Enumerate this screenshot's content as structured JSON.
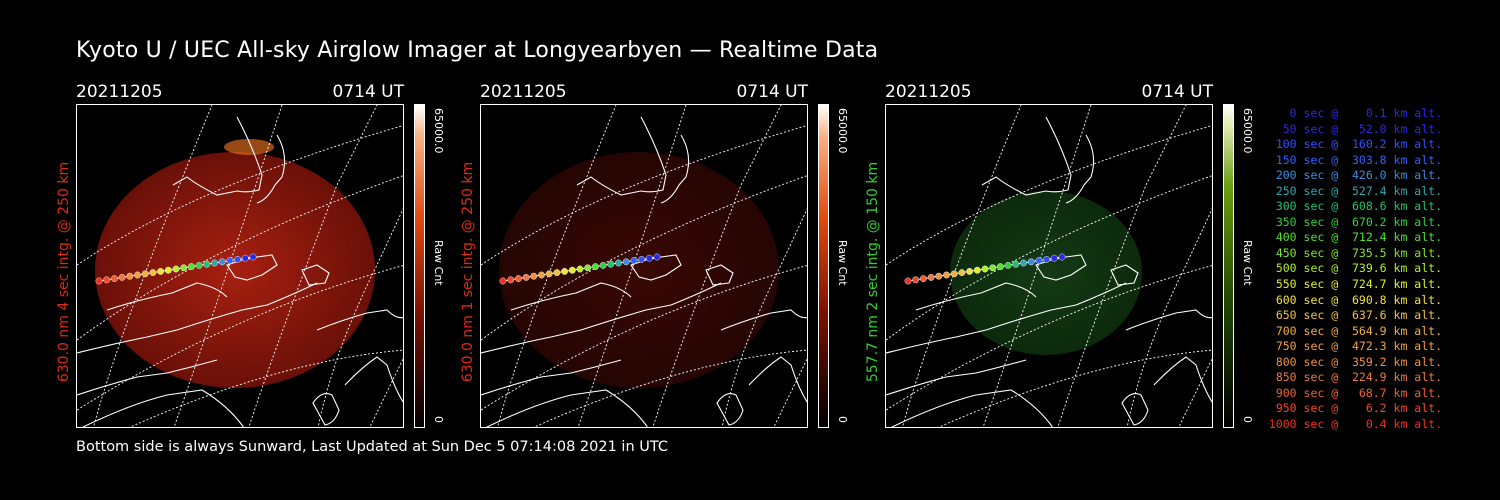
{
  "title": "Kyoto U / UEC All-sky Airglow Imager at Longyearbyen — Realtime Data",
  "footer": "Bottom side is always Sunward, Last Updated at Sun Dec  5 07:14:08 2021 in UTC",
  "colors": {
    "red_label": "#e02a10",
    "green_label": "#2fd02f"
  },
  "panels": [
    {
      "date": "20211205",
      "time": "0714 UT",
      "ylabel": "630.0 nm 4 sec intg. @ 250 km",
      "label_color": "#e02a10",
      "cbar_max": "65000.0",
      "cbar_unit": "Raw Cnt",
      "cbar_min": "0",
      "glow": "bright-red",
      "cbar_color": "red"
    },
    {
      "date": "20211205",
      "time": "0714 UT",
      "ylabel": "630.0 nm 1 sec intg. @ 250 km",
      "label_color": "#e02a10",
      "cbar_max": "65000.0",
      "cbar_unit": "Raw Cnt",
      "cbar_min": "0",
      "glow": "dim-red",
      "cbar_color": "red"
    },
    {
      "date": "20211205",
      "time": "0714 UT",
      "ylabel": "557.7 nm 2 sec intg. @ 150 km",
      "label_color": "#2fd02f",
      "cbar_max": "65000.0",
      "cbar_unit": "Raw Cnt",
      "cbar_min": "0",
      "glow": "dim-green",
      "cbar_color": "green"
    }
  ],
  "trajectory_legend": [
    {
      "text": "   0 sec @    0.1 km alt.",
      "color": "#2a2ae0"
    },
    {
      "text": "  50 sec @   52.0 km alt.",
      "color": "#2a2ae0"
    },
    {
      "text": " 100 sec @  160.2 km alt.",
      "color": "#3050ff"
    },
    {
      "text": " 150 sec @  303.8 km alt.",
      "color": "#3060ff"
    },
    {
      "text": " 200 sec @  426.0 km alt.",
      "color": "#3a8ce0"
    },
    {
      "text": " 250 sec @  527.4 km alt.",
      "color": "#2aa8b0"
    },
    {
      "text": " 300 sec @  608.6 km alt.",
      "color": "#20c070"
    },
    {
      "text": " 350 sec @  670.2 km alt.",
      "color": "#30d040"
    },
    {
      "text": " 400 sec @  712.4 km alt.",
      "color": "#50e030"
    },
    {
      "text": " 450 sec @  735.5 km alt.",
      "color": "#80e830"
    },
    {
      "text": " 500 sec @  739.6 km alt.",
      "color": "#b0f030"
    },
    {
      "text": " 550 sec @  724.7 km alt.",
      "color": "#e0f030"
    },
    {
      "text": " 600 sec @  690.8 km alt.",
      "color": "#f0e040"
    },
    {
      "text": " 650 sec @  637.6 km alt.",
      "color": "#f0c040"
    },
    {
      "text": " 700 sec @  564.9 km alt.",
      "color": "#f0b040"
    },
    {
      "text": " 750 sec @  472.3 km alt.",
      "color": "#f0a040"
    },
    {
      "text": " 800 sec @  359.2 km alt.",
      "color": "#f09040"
    },
    {
      "text": " 850 sec @  224.9 km alt.",
      "color": "#f07840"
    },
    {
      "text": " 900 sec @   68.7 km alt.",
      "color": "#f06030"
    },
    {
      "text": " 950 sec @    6.2 km alt.",
      "color": "#f04828"
    },
    {
      "text": "1000 sec @    0.4 km alt.",
      "color": "#f03020"
    }
  ]
}
